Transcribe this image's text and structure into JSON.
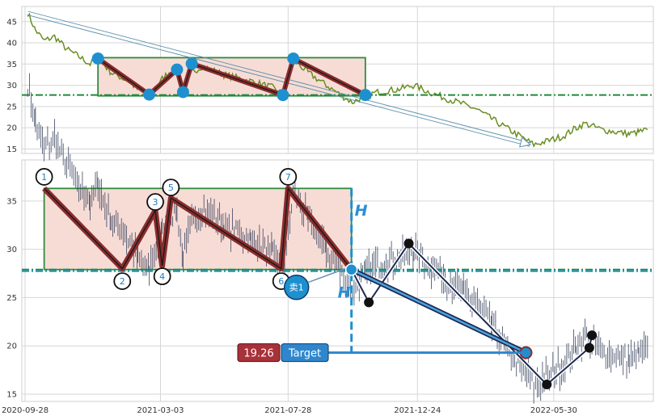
{
  "colors": {
    "price_top": "#6b8e23",
    "ohlc_bottom": "#3b4660",
    "pattern_stroke": "#8b2c2c",
    "rect_border": "#2e8b3e",
    "rect_fill": "#f7dcd6",
    "neckline": "#1f8a3a",
    "blue_marker": "#1e90d0",
    "black_marker": "#111111",
    "badge_red": "#a8323a",
    "badge_blue": "#2f86cc"
  },
  "chart_data": [
    {
      "type": "line",
      "panel": "top",
      "ylim": [
        14.5,
        48
      ],
      "yticks": [
        15,
        20,
        25,
        30,
        35,
        40,
        45
      ],
      "xlim": [
        "2020-09-28",
        "2022-09-18"
      ],
      "series": [
        {
          "values_from": "price_path"
        }
      ],
      "price_path": [
        [
          "2020-10-01",
          47.0
        ],
        [
          "2020-10-10",
          43.0
        ],
        [
          "2020-10-20",
          40.5
        ],
        [
          "2020-11-01",
          41.5
        ],
        [
          "2020-11-15",
          38.5
        ],
        [
          "2020-12-01",
          36.5
        ],
        [
          "2020-12-12",
          35.0
        ],
        [
          "2020-12-21",
          36.5
        ],
        [
          "2021-01-05",
          33.0
        ],
        [
          "2021-01-25",
          31.0
        ],
        [
          "2021-02-05",
          29.0
        ],
        [
          "2021-02-18",
          28.0
        ],
        [
          "2021-03-05",
          31.5
        ],
        [
          "2021-03-15",
          33.5
        ],
        [
          "2021-03-22",
          34.0
        ],
        [
          "2021-03-29",
          29.0
        ],
        [
          "2021-04-08",
          33.0
        ],
        [
          "2021-04-20",
          34.5
        ],
        [
          "2021-05-15",
          32.5
        ],
        [
          "2021-06-15",
          31.0
        ],
        [
          "2021-07-10",
          29.5
        ],
        [
          "2021-07-22",
          28.0
        ],
        [
          "2021-07-28",
          31.0
        ],
        [
          "2021-08-03",
          36.0
        ],
        [
          "2021-08-20",
          33.0
        ],
        [
          "2021-09-10",
          30.0
        ],
        [
          "2021-09-28",
          27.5
        ],
        [
          "2021-10-10",
          26.0
        ],
        [
          "2021-10-25",
          27.5
        ],
        [
          "2021-11-10",
          28.5
        ],
        [
          "2021-12-01",
          29.0
        ],
        [
          "2021-12-20",
          30.0
        ],
        [
          "2022-01-05",
          28.5
        ],
        [
          "2022-01-25",
          27.0
        ],
        [
          "2022-02-15",
          25.5
        ],
        [
          "2022-03-01",
          24.5
        ],
        [
          "2022-03-20",
          22.0
        ],
        [
          "2022-04-05",
          20.0
        ],
        [
          "2022-04-25",
          17.5
        ],
        [
          "2022-05-07",
          16.0
        ],
        [
          "2022-05-25",
          17.0
        ],
        [
          "2022-06-10",
          18.0
        ],
        [
          "2022-06-25",
          20.0
        ],
        [
          "2022-07-05",
          21.0
        ],
        [
          "2022-07-25",
          19.5
        ],
        [
          "2022-08-10",
          19.0
        ],
        [
          "2022-08-25",
          18.5
        ],
        [
          "2022-09-05",
          19.0
        ],
        [
          "2022-09-15",
          19.5
        ]
      ],
      "trend_arrow": {
        "from": [
          "2020-10-01",
          47.0
        ],
        "to": [
          "2022-05-03",
          16.0
        ]
      },
      "pattern_rect": {
        "x": [
          "2020-12-21",
          "2021-10-25"
        ],
        "y": [
          27.5,
          36.5
        ]
      },
      "neckline": 27.7,
      "pattern_points": [
        [
          "2020-12-21",
          36.3
        ],
        [
          "2021-02-18",
          27.8
        ],
        [
          "2021-03-22",
          33.7
        ],
        [
          "2021-03-29",
          28.4
        ],
        [
          "2021-04-08",
          35.1
        ],
        [
          "2021-07-22",
          27.7
        ],
        [
          "2021-08-03",
          36.3
        ],
        [
          "2021-10-25",
          27.7
        ]
      ]
    },
    {
      "type": "ohlc",
      "panel": "bottom",
      "ylim": [
        14.5,
        39
      ],
      "yticks": [
        15,
        20,
        25,
        30,
        35
      ],
      "xlim": [
        "2020-09-28",
        "2022-09-18"
      ],
      "x_tick_labels": [
        "2020-09-28",
        "2021-03-03",
        "2021-07-28",
        "2021-12-24",
        "2022-05-30"
      ],
      "series": [
        {
          "values_from": "price_path_top_panel"
        }
      ],
      "pattern_rect": {
        "x": [
          "2020-10-20",
          "2021-10-09"
        ],
        "y": [
          27.9,
          36.3
        ]
      },
      "neckline": 27.9,
      "pattern_points": [
        [
          "2020-10-20",
          36.3
        ],
        [
          "2021-01-18",
          28.0
        ],
        [
          "2021-02-25",
          34.0
        ],
        [
          "2021-03-05",
          28.3
        ],
        [
          "2021-03-15",
          35.3
        ],
        [
          "2021-07-20",
          28.0
        ],
        [
          "2021-07-28",
          36.3
        ],
        [
          "2021-10-09",
          27.9
        ]
      ],
      "pivot_labels": [
        {
          "label": "1",
          "at": [
            "2020-10-20",
            37.5
          ]
        },
        {
          "label": "2",
          "at": [
            "2021-01-18",
            26.7
          ]
        },
        {
          "label": "3",
          "at": [
            "2021-02-25",
            34.9
          ]
        },
        {
          "label": "4",
          "at": [
            "2021-03-05",
            27.2
          ]
        },
        {
          "label": "5",
          "at": [
            "2021-03-15",
            36.4
          ]
        },
        {
          "label": "6",
          "at": [
            "2021-07-20",
            26.7
          ]
        },
        {
          "label": "7",
          "at": [
            "2021-07-28",
            37.5
          ]
        }
      ],
      "forecast_path": [
        [
          "2021-10-09",
          27.9
        ],
        [
          "2021-10-29",
          24.5
        ],
        [
          "2021-12-14",
          30.6
        ],
        [
          "2022-05-22",
          16.0
        ],
        [
          "2022-07-10",
          19.8
        ],
        [
          "2022-07-13",
          21.1
        ]
      ],
      "target_path": [
        [
          "2021-10-09",
          27.9
        ],
        [
          "2022-04-28",
          19.3
        ]
      ],
      "target_line": {
        "from": "2021-08-15",
        "to": "2022-04-28",
        "y": 19.3
      },
      "h_measure": {
        "x": "2021-10-09",
        "y": [
          19.3,
          36.3
        ]
      },
      "h_labels": [
        "H",
        "H"
      ],
      "sell_badge": "卖1",
      "target_price": "19.26",
      "target_label": "Target"
    }
  ]
}
